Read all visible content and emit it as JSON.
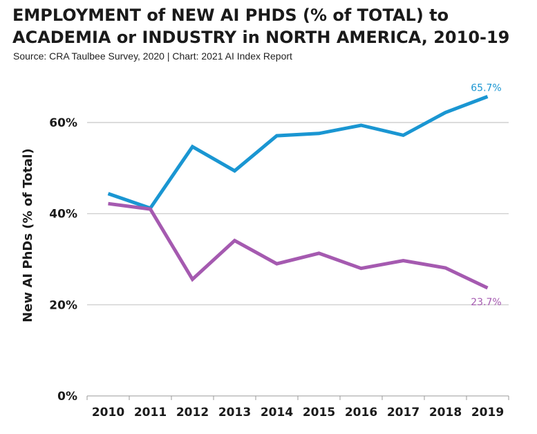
{
  "title_line1": "EMPLOYMENT of NEW AI PHDS (% of TOTAL) to",
  "title_line2": "ACADEMIA or INDUSTRY in NORTH AMERICA, 2010-19",
  "subtitle": "Source: CRA Taulbee Survey, 2020 | Chart: 2021 AI Index Report",
  "chart_data": {
    "type": "line",
    "title": "EMPLOYMENT of NEW AI PHDS (% of TOTAL) to ACADEMIA or INDUSTRY in NORTH AMERICA, 2010-19",
    "ylabel": "New AI PhDs (% of Total)",
    "xlabel": "",
    "ylim": [
      0,
      70
    ],
    "yticks": [
      0,
      20,
      40,
      60
    ],
    "ytick_labels": [
      "0%",
      "20%",
      "40%",
      "60%"
    ],
    "grid": true,
    "x": [
      "2010",
      "2011",
      "2012",
      "2013",
      "2014",
      "2015",
      "2016",
      "2017",
      "2018",
      "2019"
    ],
    "series": [
      {
        "color": "#1a96d2",
        "values": [
          44.4,
          41.2,
          54.7,
          49.4,
          57.1,
          57.6,
          59.4,
          57.2,
          62.2,
          65.7
        ],
        "end_label": "65.7%"
      },
      {
        "color": "#a55ab0",
        "values": [
          42.2,
          41.0,
          25.6,
          34.1,
          29.0,
          31.3,
          28.0,
          29.7,
          28.1,
          23.7
        ],
        "end_label": "23.7%"
      }
    ]
  }
}
